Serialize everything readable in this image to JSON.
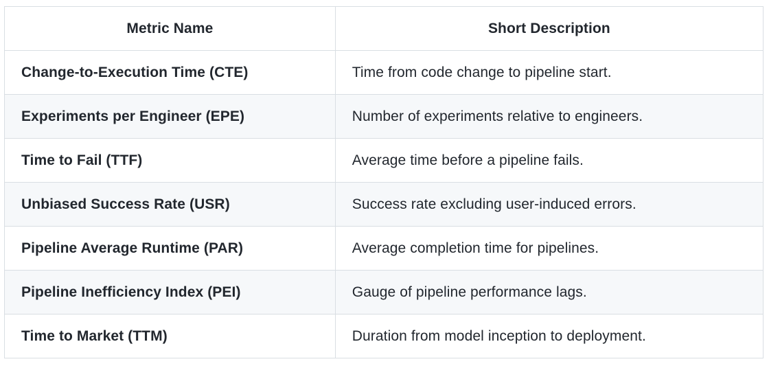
{
  "colors": {
    "text": "#22272e",
    "border": "#d9dee3",
    "alt_row_background": "#f6f8fa",
    "row_background": "#ffffff",
    "page_background": "#ffffff"
  },
  "table": {
    "columns": [
      {
        "label": "Metric Name"
      },
      {
        "label": "Short Description"
      }
    ],
    "rows": [
      {
        "metric": "Change-to-Execution Time (CTE)",
        "description": "Time from code change to pipeline start."
      },
      {
        "metric": "Experiments per Engineer (EPE)",
        "description": "Number of experiments relative to engineers."
      },
      {
        "metric": "Time to Fail (TTF)",
        "description": "Average time before a pipeline fails."
      },
      {
        "metric": "Unbiased Success Rate (USR)",
        "description": "Success rate excluding user-induced errors."
      },
      {
        "metric": "Pipeline Average Runtime (PAR)",
        "description": "Average completion time for pipelines."
      },
      {
        "metric": "Pipeline Inefficiency Index (PEI)",
        "description": "Gauge of pipeline performance lags."
      },
      {
        "metric": "Time to Market (TTM)",
        "description": "Duration from model inception to deployment."
      }
    ]
  }
}
